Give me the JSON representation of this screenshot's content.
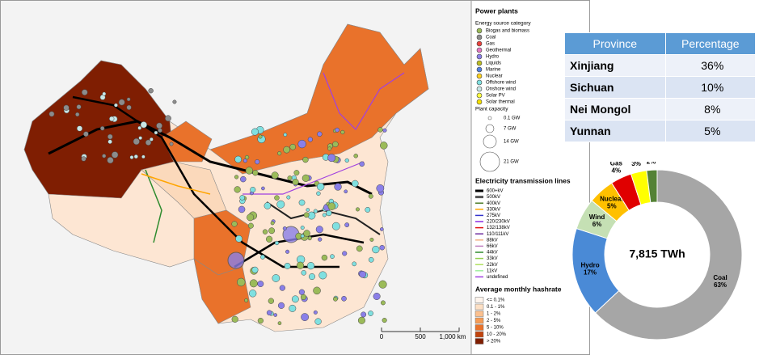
{
  "map": {
    "legend": {
      "title": "Power plants",
      "energy_heading": "Energy source category",
      "energy": [
        {
          "label": "Biogas and biomass",
          "color": "#9bbb59"
        },
        {
          "label": "Coal",
          "color": "#8c8c8c"
        },
        {
          "label": "Gas",
          "color": "#e8413c"
        },
        {
          "label": "Geothermal",
          "color": "#e377c2"
        },
        {
          "label": "Hydro",
          "color": "#8a7fe8"
        },
        {
          "label": "Liquids",
          "color": "#bcbd22"
        },
        {
          "label": "Marine",
          "color": "#4f7fe0"
        },
        {
          "label": "Nuclear",
          "color": "#ffd21f"
        },
        {
          "label": "Offshore wind",
          "color": "#7fe0e0"
        },
        {
          "label": "Onshore wind",
          "color": "#c8e6e6"
        },
        {
          "label": "Solar PV",
          "color": "#ffff40"
        },
        {
          "label": "Solar thermal",
          "color": "#f5e000"
        }
      ],
      "capacity_heading": "Plant capacity",
      "capacity": [
        "0.1 GW",
        "7 GW",
        "14 GW",
        "21 GW"
      ],
      "lines_heading": "Electricity transmission lines",
      "lines": [
        {
          "label": "600+kV",
          "color": "#000000"
        },
        {
          "label": "500kV",
          "color": "#555555"
        },
        {
          "label": "400kV",
          "color": "#4e7d2a"
        },
        {
          "label": "330kV",
          "color": "#ffa500"
        },
        {
          "label": "275kV",
          "color": "#3333cc"
        },
        {
          "label": "220/230kV",
          "color": "#8a2be2"
        },
        {
          "label": "132/138kV",
          "color": "#e01010"
        },
        {
          "label": "110/111kV",
          "color": "#7030a0"
        },
        {
          "label": "88kV",
          "color": "#f4b183"
        },
        {
          "label": "66kV",
          "color": "#c080c0"
        },
        {
          "label": "44kV",
          "color": "#2e8b2e"
        },
        {
          "label": "33kV",
          "color": "#92d050"
        },
        {
          "label": "22kV",
          "color": "#b0e060"
        },
        {
          "label": "11kV",
          "color": "#a0f0a0"
        },
        {
          "label": "undefined",
          "color": "#a040e0"
        }
      ],
      "hashrate_heading": "Average monthly hashrate",
      "hashrate": [
        {
          "label": "<= 0.1%",
          "color": "#fff4ec"
        },
        {
          "label": "0.1 - 1%",
          "color": "#fde0c5"
        },
        {
          "label": "1 - 2%",
          "color": "#fbc08f"
        },
        {
          "label": "2 - 5%",
          "color": "#f59b55"
        },
        {
          "label": "5 - 10%",
          "color": "#e9722b"
        },
        {
          "label": "10 - 20%",
          "color": "#c1440e"
        },
        {
          "label": "> 20%",
          "color": "#7f1e02"
        }
      ]
    },
    "scale_labels": [
      "0",
      "500",
      "1,000 km"
    ]
  },
  "table": {
    "header": [
      "Province",
      "Percentage"
    ],
    "rows": [
      [
        "Xinjiang",
        "36%"
      ],
      [
        "Sichuan",
        "10%"
      ],
      [
        "Nei Mongol",
        "8%"
      ],
      [
        "Yunnan",
        "5%"
      ]
    ]
  },
  "chart_data": {
    "type": "pie",
    "center_label": "7,815 TWh",
    "categories": [
      "Coal",
      "Hydro",
      "Wind",
      "Nuclear",
      "Gas",
      "Solar PV",
      "Bio"
    ],
    "values": [
      63,
      17,
      6,
      5,
      4,
      3,
      2
    ],
    "value_labels": [
      "63%",
      "17%",
      "6%",
      "5%",
      "4%",
      "3%",
      "2%"
    ],
    "colors": [
      "#a6a6a6",
      "#4a8ad6",
      "#c5e0b4",
      "#ffc000",
      "#e00000",
      "#ffff00",
      "#548235"
    ]
  }
}
